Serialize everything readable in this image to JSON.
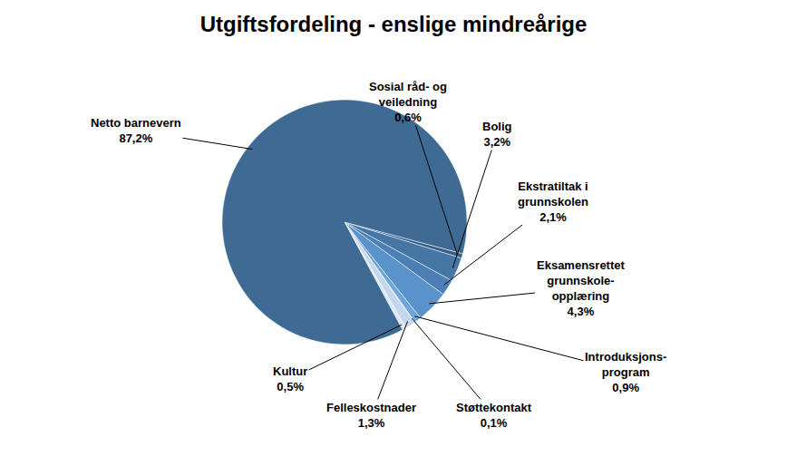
{
  "chart_data": {
    "type": "pie",
    "title": "Utgiftsfordeling - enslige mindreårige",
    "categories": [
      "Sosial råd- og\nveiledning",
      "Bolig",
      "Ekstratiltak i\ngrunnskolen",
      "Eksamensrettet\ngrunnskole-\nopplæring",
      "Introduksjons-\nprogram",
      "Støttekontakt",
      "Felleskostnader",
      "Kultur",
      "Netto barnevern"
    ],
    "values": [
      0.6,
      3.2,
      2.1,
      4.3,
      0.9,
      0.1,
      1.3,
      0.5,
      87.2
    ],
    "value_labels": [
      "0,6%",
      "3,2%",
      "2,1%",
      "4,3%",
      "0,9%",
      "0,1%",
      "1,3%",
      "0,5%",
      "87,2%"
    ],
    "colors": [
      "#35608a",
      "#4676a4",
      "#4c80b4",
      "#5a93cc",
      "#6fa5da",
      "#9dc0e6",
      "#c3d7ee",
      "#dde8f5",
      "#3e6a94"
    ],
    "data_labels": true
  }
}
